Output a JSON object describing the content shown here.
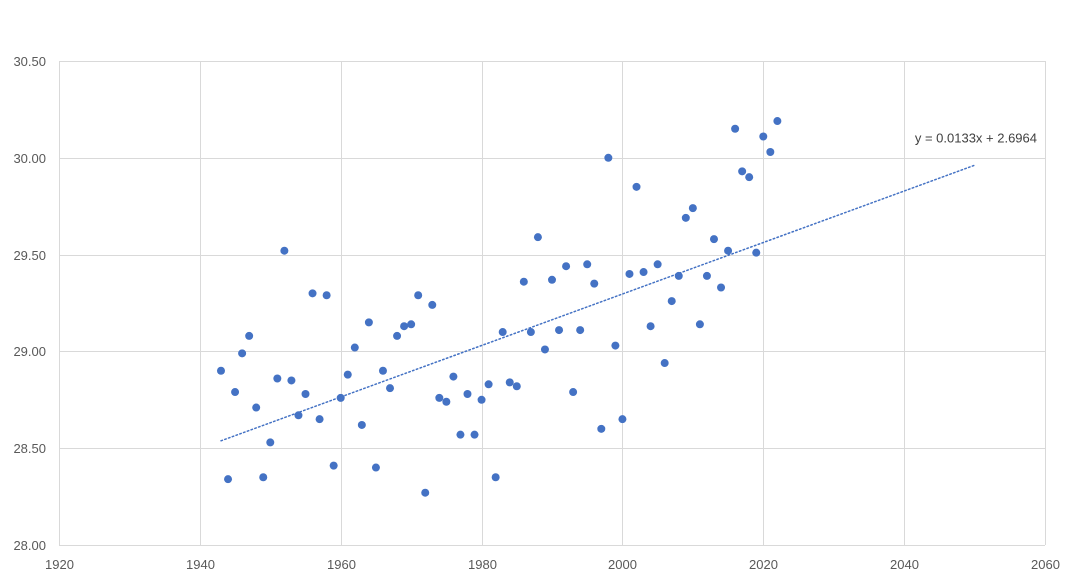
{
  "chart_data": {
    "type": "scatter",
    "title": "",
    "xlabel": "",
    "ylabel": "",
    "xlim": [
      1920,
      2060
    ],
    "ylim": [
      28.0,
      30.5
    ],
    "x_ticks": [
      1920,
      1940,
      1960,
      1980,
      2000,
      2020,
      2040,
      2060
    ],
    "y_ticks": [
      28.0,
      28.5,
      29.0,
      29.5,
      30.0,
      30.5
    ],
    "x_tick_labels": [
      "1920",
      "1940",
      "1960",
      "1980",
      "2000",
      "2020",
      "2040",
      "2060"
    ],
    "y_tick_labels": [
      "28.00",
      "28.50",
      "29.00",
      "29.50",
      "30.00",
      "30.50"
    ],
    "grid": true,
    "legend": "none",
    "point_color": "#4472C4",
    "gridline_color": "#D9D9D9",
    "trendline": {
      "type": "linear",
      "slope": 0.0133,
      "intercept": 2.6964,
      "x_start": 1943,
      "x_end": 2050,
      "style": "dotted",
      "color": "#4472C4",
      "label": "y = 0.0133x + 2.6964"
    },
    "points": [
      [
        1943,
        28.9
      ],
      [
        1944,
        28.34
      ],
      [
        1945,
        28.79
      ],
      [
        1946,
        28.99
      ],
      [
        1947,
        29.08
      ],
      [
        1948,
        28.71
      ],
      [
        1949,
        28.35
      ],
      [
        1950,
        28.53
      ],
      [
        1951,
        28.86
      ],
      [
        1952,
        29.52
      ],
      [
        1953,
        28.85
      ],
      [
        1954,
        28.67
      ],
      [
        1955,
        28.78
      ],
      [
        1956,
        29.3
      ],
      [
        1957,
        28.65
      ],
      [
        1958,
        29.29
      ],
      [
        1959,
        28.41
      ],
      [
        1960,
        28.76
      ],
      [
        1961,
        28.88
      ],
      [
        1962,
        29.02
      ],
      [
        1963,
        28.62
      ],
      [
        1964,
        29.15
      ],
      [
        1965,
        28.4
      ],
      [
        1966,
        28.9
      ],
      [
        1967,
        28.81
      ],
      [
        1968,
        29.08
      ],
      [
        1969,
        29.13
      ],
      [
        1970,
        29.14
      ],
      [
        1971,
        29.29
      ],
      [
        1972,
        28.27
      ],
      [
        1973,
        29.24
      ],
      [
        1974,
        28.76
      ],
      [
        1975,
        28.74
      ],
      [
        1976,
        28.87
      ],
      [
        1977,
        28.57
      ],
      [
        1978,
        28.78
      ],
      [
        1979,
        28.57
      ],
      [
        1980,
        28.75
      ],
      [
        1981,
        28.83
      ],
      [
        1982,
        28.35
      ],
      [
        1983,
        29.1
      ],
      [
        1984,
        28.84
      ],
      [
        1985,
        28.82
      ],
      [
        1986,
        29.36
      ],
      [
        1987,
        29.1
      ],
      [
        1988,
        29.59
      ],
      [
        1989,
        29.01
      ],
      [
        1990,
        29.37
      ],
      [
        1991,
        29.11
      ],
      [
        1992,
        29.44
      ],
      [
        1993,
        28.79
      ],
      [
        1994,
        29.11
      ],
      [
        1995,
        29.45
      ],
      [
        1996,
        29.35
      ],
      [
        1997,
        28.6
      ],
      [
        1998,
        30.0
      ],
      [
        1999,
        29.03
      ],
      [
        2000,
        28.65
      ],
      [
        2001,
        29.4
      ],
      [
        2002,
        29.85
      ],
      [
        2003,
        29.41
      ],
      [
        2004,
        29.13
      ],
      [
        2005,
        29.45
      ],
      [
        2006,
        28.94
      ],
      [
        2007,
        29.26
      ],
      [
        2008,
        29.39
      ],
      [
        2009,
        29.69
      ],
      [
        2010,
        29.74
      ],
      [
        2011,
        29.14
      ],
      [
        2012,
        29.39
      ],
      [
        2013,
        29.58
      ],
      [
        2014,
        29.33
      ],
      [
        2015,
        29.52
      ],
      [
        2016,
        30.15
      ],
      [
        2017,
        29.93
      ],
      [
        2018,
        29.9
      ],
      [
        2019,
        29.51
      ],
      [
        2020,
        30.11
      ],
      [
        2021,
        30.03
      ],
      [
        2022,
        30.19
      ]
    ]
  }
}
